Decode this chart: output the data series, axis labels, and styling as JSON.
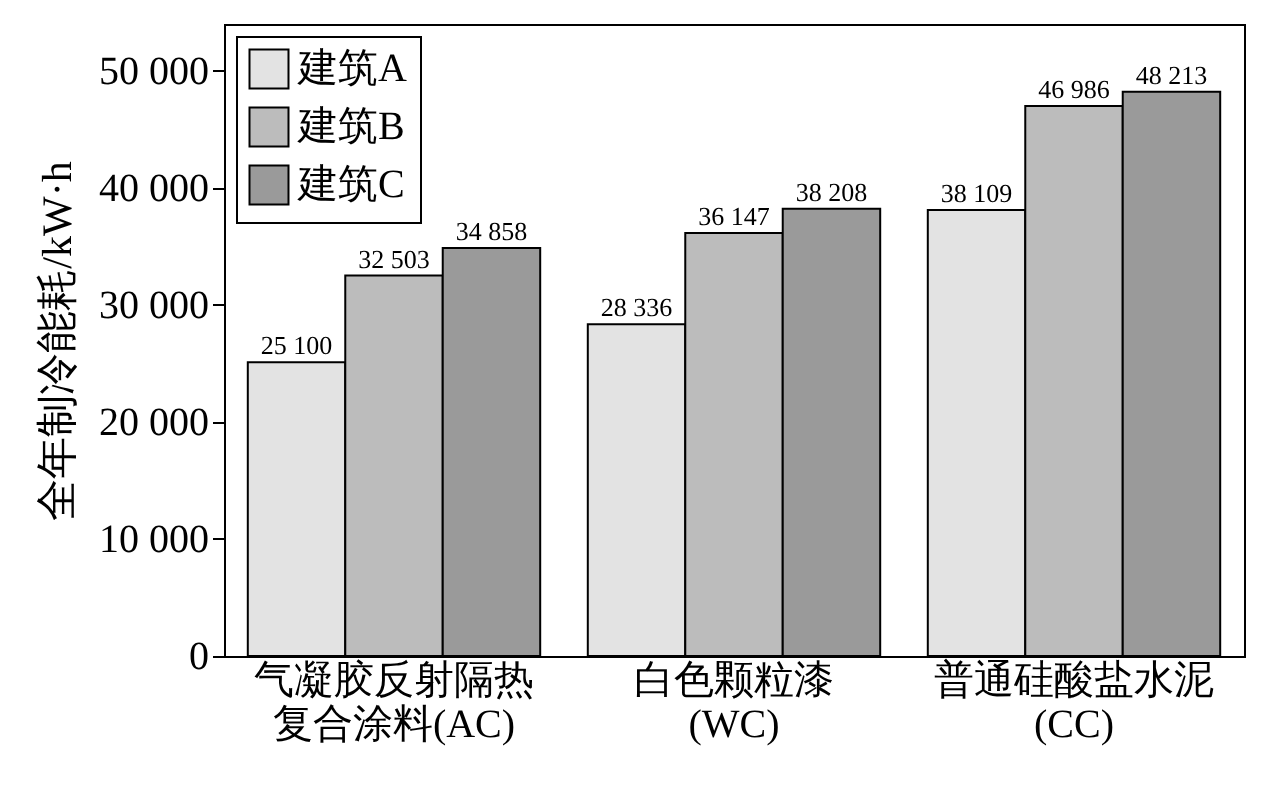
{
  "chart_data": {
    "type": "bar",
    "ylabel": "全年制冷能耗/kW·h",
    "categories": [
      "气凝胶反射隔热复合涂料(AC)",
      "白色颗粒漆(WC)",
      "普通硅酸盐水泥(CC)"
    ],
    "series": [
      {
        "name": "建筑A",
        "color": "#e3e3e3",
        "values": [
          25100,
          28336,
          38109
        ],
        "value_labels": [
          "25 100",
          "28 336",
          "38 109"
        ]
      },
      {
        "name": "建筑B",
        "color": "#bcbcbc",
        "values": [
          32503,
          36147,
          46986
        ],
        "value_labels": [
          "32 503",
          "36 147",
          "46 986"
        ]
      },
      {
        "name": "建筑C",
        "color": "#9a9a9a",
        "values": [
          34858,
          38208,
          48213
        ],
        "value_labels": [
          "34 858",
          "38 208",
          "48 213"
        ]
      }
    ],
    "ylim": [
      0,
      54000
    ],
    "yticks": [
      0,
      {
        "value": 10000,
        "label": "10 000"
      },
      {
        "value": 20000,
        "label": "20 000"
      },
      {
        "value": 30000,
        "label": "30 000"
      },
      {
        "value": 40000,
        "label": "40 000"
      },
      {
        "value": 50000,
        "label": "50 000"
      }
    ],
    "grid": false,
    "legend": "top left"
  }
}
